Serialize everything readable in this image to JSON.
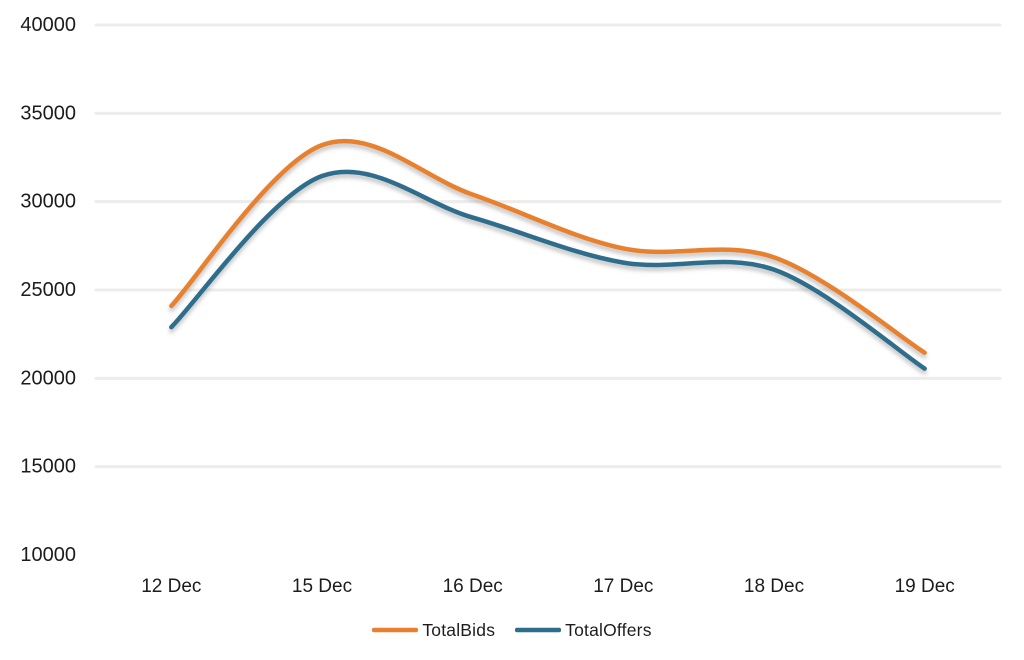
{
  "chart_data": {
    "type": "line",
    "smooth": true,
    "categories": [
      "12 Dec",
      "15 Dec",
      "16 Dec",
      "17 Dec",
      "18 Dec",
      "19 Dec"
    ],
    "series": [
      {
        "name": "TotalBids",
        "color": "#E8812F",
        "values": [
          24100,
          33200,
          30400,
          27350,
          26850,
          21450
        ]
      },
      {
        "name": "TotalOffers",
        "color": "#2E6E8C",
        "values": [
          22900,
          31450,
          29100,
          26550,
          26150,
          20550
        ]
      }
    ],
    "title": "",
    "xlabel": "",
    "ylabel": "",
    "ylim": [
      10000,
      40000
    ],
    "yticks": [
      10000,
      15000,
      20000,
      25000,
      30000,
      35000,
      40000
    ],
    "gridline_ticks": [
      15000,
      20000,
      25000,
      30000,
      35000,
      40000
    ],
    "grid": "horizontal",
    "gridline_color": "#EEECEA",
    "legend_position": "bottom-center",
    "text_color": "#1c1c1c",
    "background": "#ffffff"
  }
}
